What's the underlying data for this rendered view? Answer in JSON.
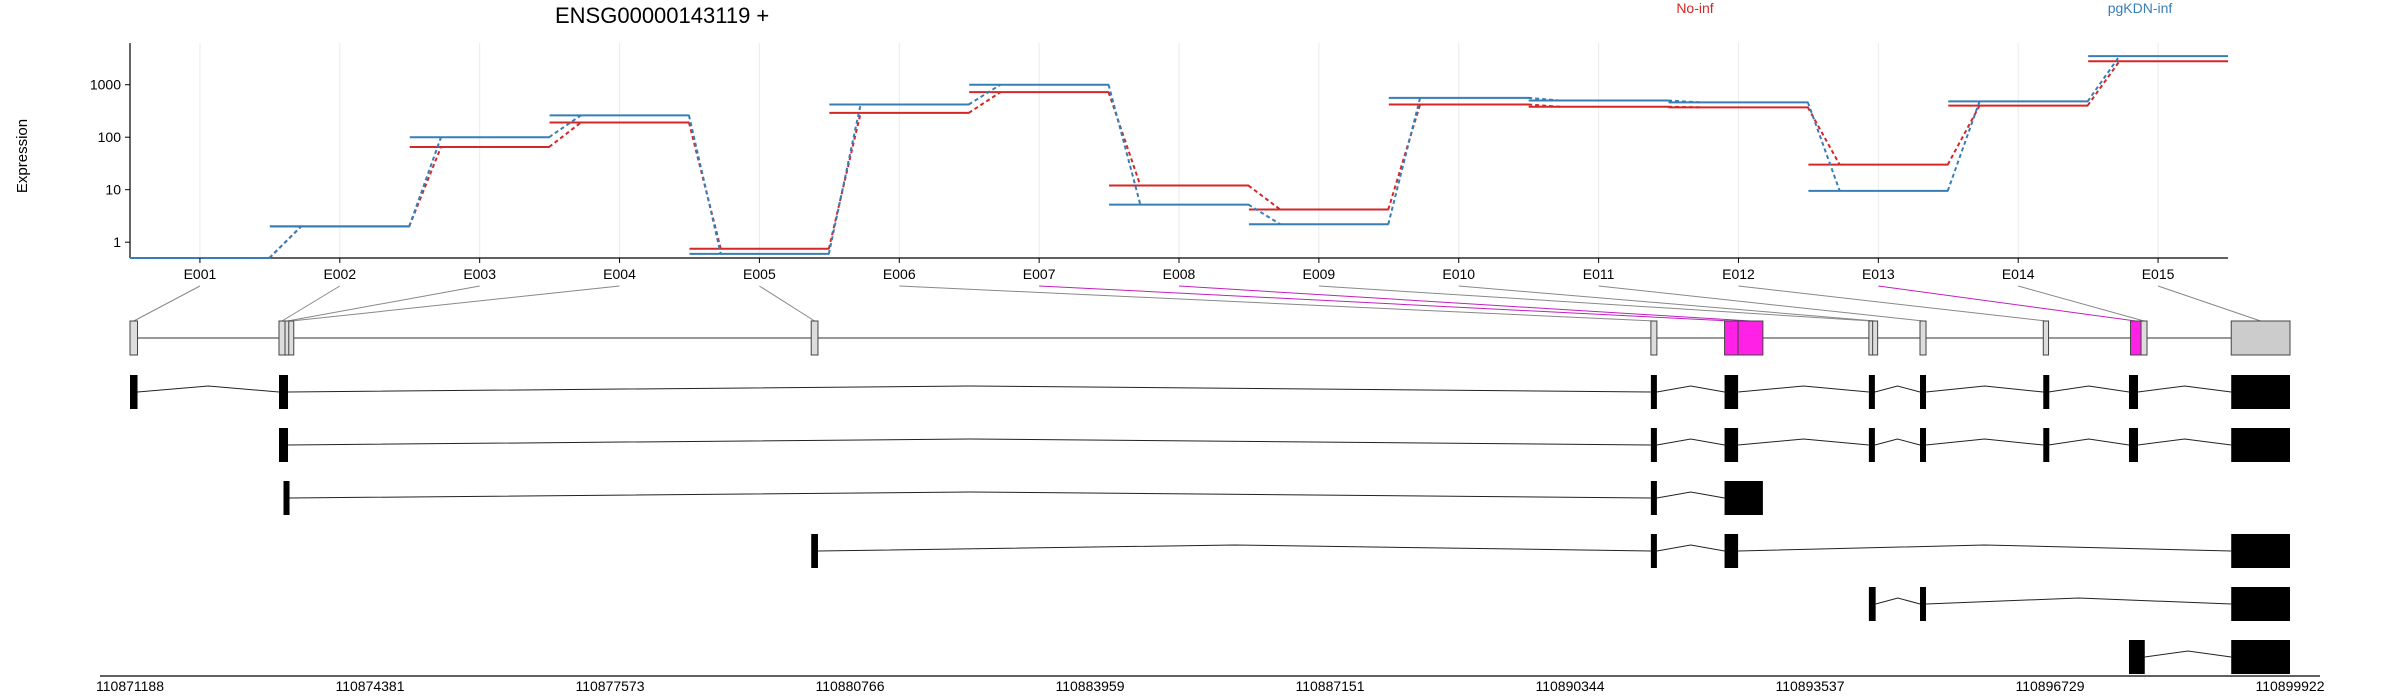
{
  "chart_data": {
    "type": "line",
    "title": "ENSG00000143119 +",
    "ylabel": "Expression",
    "y_scale": "log",
    "ylim": [
      0.5,
      5000
    ],
    "y_ticks": [
      1,
      10,
      100,
      1000
    ],
    "y_tick_labels": [
      "1",
      "10",
      "100",
      "1000"
    ],
    "grid": "vertical",
    "legend_placement": "top-right",
    "categories": [
      "E001",
      "E002",
      "E003",
      "E004",
      "E005",
      "E006",
      "E007",
      "E008",
      "E009",
      "E010",
      "E011",
      "E012",
      "E013",
      "E014",
      "E015"
    ],
    "series": [
      {
        "name": "No-inf",
        "color": "#d62728",
        "values": [
          0.5,
          2,
          65,
          190,
          0.75,
          290,
          720,
          12,
          4.2,
          420,
          380,
          370,
          30,
          400,
          2800
        ]
      },
      {
        "name": "pgKDN-inf",
        "color": "#377eb8",
        "values": [
          0.5,
          2,
          100,
          260,
          0.6,
          420,
          1000,
          5.2,
          2.2,
          560,
          500,
          460,
          9.5,
          480,
          3500
        ]
      }
    ],
    "genomic_axis": {
      "range": [
        110871188,
        110899922
      ],
      "tick_labels": [
        "110871188",
        "110874381",
        "110877573",
        "110880766",
        "110883959",
        "110887151",
        "110890344",
        "110893537",
        "110896729",
        "110899922"
      ]
    },
    "exons": [
      {
        "id": "E001",
        "start": 110871188,
        "end": 110871288,
        "highlight": false
      },
      {
        "id": "E002",
        "start": 110873170,
        "end": 110873250,
        "highlight": false
      },
      {
        "id": "E003",
        "start": 110873250,
        "end": 110873300,
        "highlight": false
      },
      {
        "id": "E004",
        "start": 110873300,
        "end": 110873330,
        "highlight": false
      },
      {
        "id": "E005",
        "start": 110880250,
        "end": 110880340,
        "highlight": false
      },
      {
        "id": "E006",
        "start": 110891420,
        "end": 110891500,
        "highlight": false
      },
      {
        "id": "E007",
        "start": 110892400,
        "end": 110892580,
        "highlight": true
      },
      {
        "id": "E008",
        "start": 110892580,
        "end": 110892910,
        "highlight": true
      },
      {
        "id": "E009",
        "start": 110894320,
        "end": 110894370,
        "highlight": false
      },
      {
        "id": "E010",
        "start": 110894370,
        "end": 110894410,
        "highlight": false
      },
      {
        "id": "E011",
        "start": 110895000,
        "end": 110895080,
        "highlight": false
      },
      {
        "id": "E012",
        "start": 110896640,
        "end": 110896710,
        "highlight": false
      },
      {
        "id": "E013",
        "start": 110897800,
        "end": 110897940,
        "highlight": true
      },
      {
        "id": "E014",
        "start": 110897940,
        "end": 110898020,
        "highlight": false
      },
      {
        "id": "E015",
        "start": 110899140,
        "end": 110899922,
        "highlight": false
      }
    ],
    "transcripts": [
      {
        "exons": [
          [
            110871188,
            110871288
          ],
          [
            110873170,
            110873290
          ],
          [
            110891420,
            110891500
          ],
          [
            110892400,
            110892580
          ],
          [
            110894320,
            110894400
          ],
          [
            110895000,
            110895080
          ],
          [
            110896640,
            110896710
          ],
          [
            110897780,
            110897900
          ],
          [
            110899140,
            110899922
          ]
        ]
      },
      {
        "exons": [
          [
            110873170,
            110873290
          ],
          [
            110891420,
            110891500
          ],
          [
            110892400,
            110892580
          ],
          [
            110894320,
            110894400
          ],
          [
            110895000,
            110895080
          ],
          [
            110896640,
            110896710
          ],
          [
            110897780,
            110897900
          ],
          [
            110899140,
            110899922
          ]
        ]
      },
      {
        "exons": [
          [
            110873230,
            110873310
          ],
          [
            110891420,
            110891500
          ],
          [
            110892400,
            110892910
          ]
        ]
      },
      {
        "exons": [
          [
            110880250,
            110880340
          ],
          [
            110891420,
            110891500
          ],
          [
            110892400,
            110892580
          ],
          [
            110899140,
            110899922
          ]
        ]
      },
      {
        "exons": [
          [
            110894320,
            110894410
          ],
          [
            110895000,
            110895080
          ],
          [
            110899140,
            110899922
          ]
        ]
      },
      {
        "exons": [
          [
            110897780,
            110897990
          ],
          [
            110899140,
            110899922
          ]
        ]
      }
    ]
  }
}
